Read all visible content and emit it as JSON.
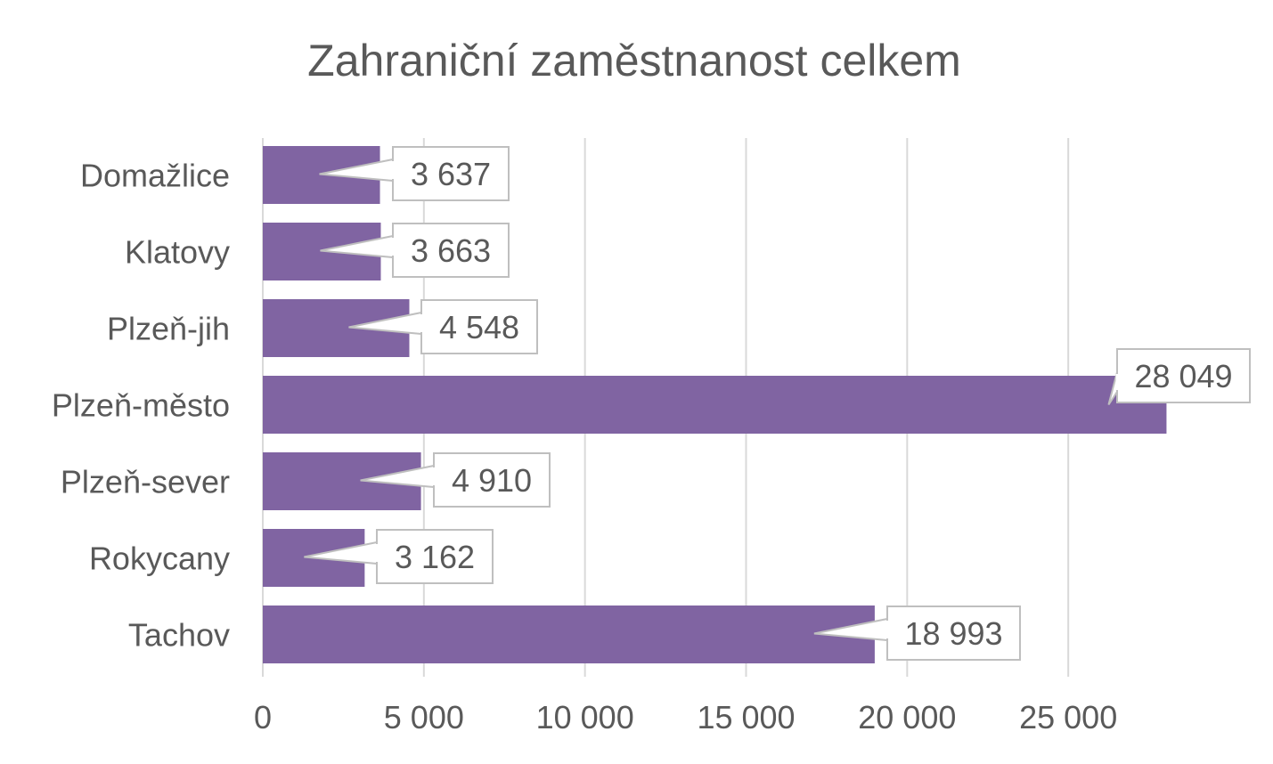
{
  "chart_data": {
    "type": "bar",
    "orientation": "horizontal",
    "title": "Zahraniční zaměstnanost celkem",
    "categories": [
      "Domažlice",
      "Klatovy",
      "Plzeň-jih",
      "Plzeň-město",
      "Plzeň-sever",
      "Rokycany",
      "Tachov"
    ],
    "values": [
      3637,
      3663,
      4548,
      28049,
      4910,
      3162,
      18993
    ],
    "value_labels": [
      "3 637",
      "3 663",
      "4 548",
      "28 049",
      "4 910",
      "3 162",
      "18 993"
    ],
    "xlim": [
      0,
      30000
    ],
    "x_ticks": [
      0,
      5000,
      10000,
      15000,
      20000,
      25000
    ],
    "x_tick_labels": [
      "0",
      "5 000",
      "10 000",
      "15 000",
      "20 000",
      "25 000"
    ],
    "xlabel": "",
    "ylabel": "",
    "grid": "vertical",
    "legend": "none",
    "colors": {
      "bar": "#8064a2",
      "grid": "#d9d9d9",
      "text": "#595959",
      "label_border": "#bfbfbf"
    }
  }
}
